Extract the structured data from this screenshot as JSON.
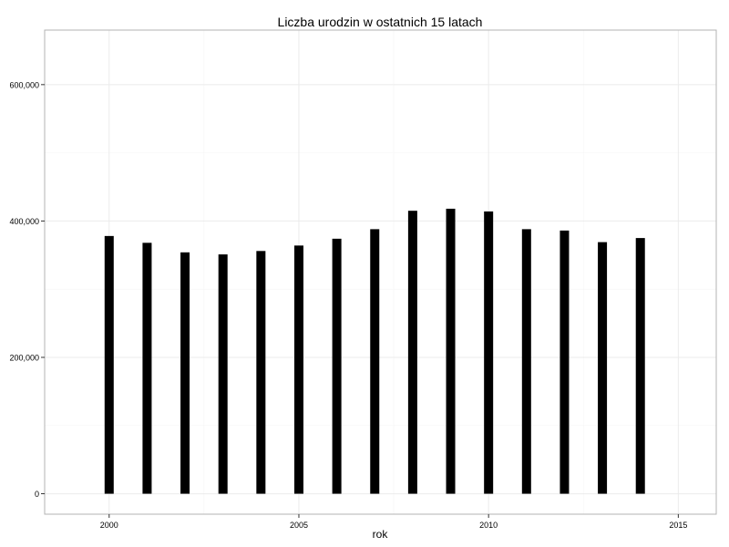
{
  "chart_data": {
    "type": "bar",
    "title": "Liczba urodzin w ostatnich 15 latach",
    "xlabel": "rok",
    "ylabel": "",
    "x": [
      2000,
      2001,
      2002,
      2003,
      2004,
      2005,
      2006,
      2007,
      2008,
      2009,
      2010,
      2011,
      2012,
      2013,
      2014
    ],
    "values": [
      378000,
      368000,
      354000,
      351000,
      356000,
      364000,
      374000,
      388000,
      415000,
      418000,
      414000,
      388000,
      386000,
      369000,
      375000
    ],
    "xlim": [
      1998.3,
      2016.0
    ],
    "ylim": [
      -30000,
      680000
    ],
    "xticks": [
      2000,
      2005,
      2010,
      2015
    ],
    "xtick_labels": [
      "2000",
      "2005",
      "2010",
      "2015"
    ],
    "yticks": [
      0,
      200000,
      400000,
      600000
    ],
    "ytick_labels": [
      "0",
      "200,000",
      "400,000",
      "600,000"
    ],
    "bar_color": "#000000",
    "panel_border_color": "#b3b3b3",
    "grid_major_color": "#ebebeb",
    "grid_minor_color": "#f5f5f5",
    "grid": true,
    "legend": "none"
  }
}
